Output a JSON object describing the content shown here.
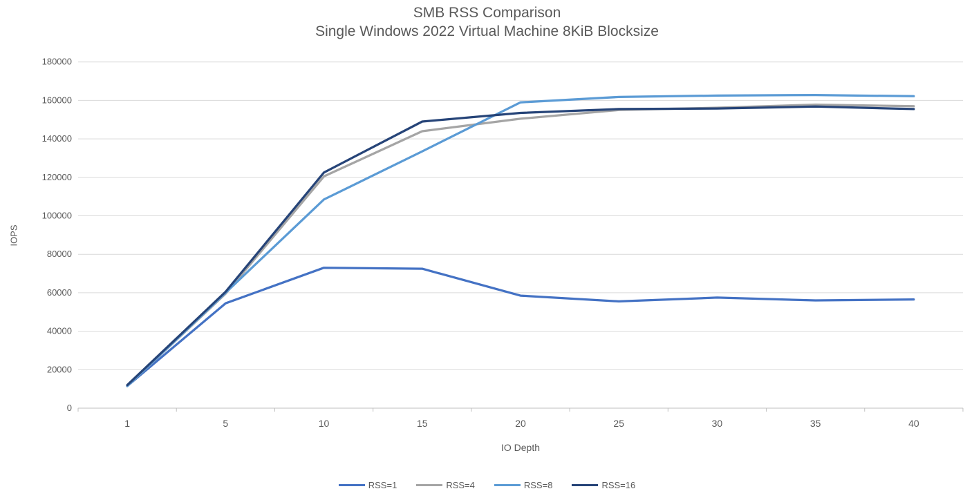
{
  "title": "SMB RSS Comparison",
  "subtitle": "Single Windows 2022 Virtual Machine 8KiB Blocksize",
  "chart_data": {
    "type": "line",
    "title": "SMB RSS Comparison",
    "subtitle": "Single Windows 2022 Virtual Machine 8KiB Blocksize",
    "xlabel": "IO Depth",
    "ylabel": "IOPS",
    "categories": [
      1,
      5,
      10,
      15,
      20,
      25,
      30,
      35,
      40
    ],
    "ylim": [
      0,
      180000
    ],
    "y_tick_step": 20000,
    "y_tick_labels": [
      "0",
      "20000",
      "40000",
      "60000",
      "80000",
      "100000",
      "120000",
      "140000",
      "160000",
      "180000"
    ],
    "grid": "horizontal",
    "legend_position": "bottom",
    "series": [
      {
        "name": "RSS=1",
        "color": "#4472C4",
        "values": [
          11500,
          54500,
          73000,
          72500,
          58500,
          55500,
          57500,
          56000,
          56500
        ]
      },
      {
        "name": "RSS=4",
        "color": "#A5A5A5",
        "values": [
          11500,
          59500,
          120500,
          144000,
          150500,
          155000,
          156200,
          157800,
          157000
        ]
      },
      {
        "name": "RSS=8",
        "color": "#5B9BD5",
        "values": [
          11500,
          60000,
          108500,
          133500,
          159000,
          161800,
          162500,
          162800,
          162200
        ]
      },
      {
        "name": "RSS=16",
        "color": "#264478",
        "values": [
          12000,
          60500,
          122500,
          149000,
          153500,
          155500,
          155800,
          156800,
          155500
        ]
      }
    ]
  },
  "colors": {
    "title_text": "#595959",
    "axis_text": "#595959",
    "gridline": "#D9D9D9",
    "axis_line": "#BFBFBF"
  }
}
